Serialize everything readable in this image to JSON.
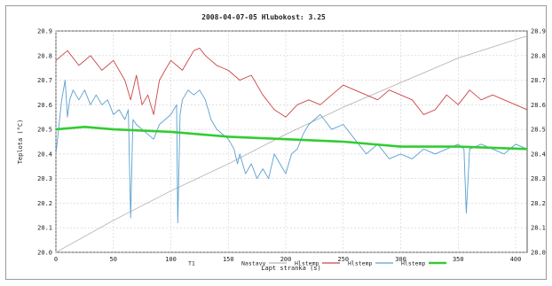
{
  "chart_data": {
    "type": "line",
    "title": "2008-04-07-05  Hlubokost: 3.25",
    "xlabel": "Lapt stranka (s)",
    "ylabel": "Teplota (°C)",
    "xlim": [
      0,
      410
    ],
    "ylim": [
      20.0,
      20.9
    ],
    "y2lim": [
      28.0,
      28.9
    ],
    "grid": true,
    "legend_position": "bottom",
    "x_ticks": [
      0,
      50,
      100,
      150,
      200,
      250,
      300,
      350,
      400
    ],
    "y_ticks": [
      "20.0",
      "20.1",
      "20.2",
      "20.3",
      "20.4",
      "20.5",
      "20.6",
      "20.7",
      "20.8",
      "20.9"
    ],
    "y2_ticks": [
      "28.00",
      "28.10",
      "28.20",
      "28.30",
      "28.40",
      "28.50",
      "28.60",
      "28.70",
      "28.80",
      "28.90"
    ],
    "series": [
      {
        "name": "T1",
        "color": "#9a9a9a",
        "axis": "none",
        "legend_line": false,
        "x": [],
        "y": []
      },
      {
        "name": "Nastavy",
        "color": "#b8b8b8",
        "axis": "y2",
        "x": [
          0,
          50,
          100,
          150,
          200,
          250,
          300,
          350,
          410
        ],
        "y": [
          28.0,
          28.13,
          28.25,
          28.36,
          28.48,
          28.59,
          28.69,
          28.79,
          28.88
        ]
      },
      {
        "name": "Hlstemp",
        "color": "#cc4444",
        "axis": "y",
        "x": [
          0,
          10,
          20,
          30,
          40,
          50,
          60,
          65,
          70,
          75,
          80,
          85,
          90,
          95,
          100,
          110,
          120,
          125,
          130,
          140,
          150,
          160,
          170,
          180,
          190,
          200,
          210,
          220,
          230,
          240,
          250,
          260,
          270,
          280,
          290,
          300,
          310,
          320,
          330,
          340,
          350,
          360,
          370,
          380,
          390,
          400,
          410
        ],
        "y": [
          20.78,
          20.82,
          20.76,
          20.8,
          20.74,
          20.78,
          20.7,
          20.62,
          20.72,
          20.6,
          20.64,
          20.56,
          20.7,
          20.74,
          20.78,
          20.74,
          20.82,
          20.83,
          20.8,
          20.76,
          20.74,
          20.7,
          20.72,
          20.64,
          20.58,
          20.55,
          20.6,
          20.62,
          20.6,
          20.64,
          20.68,
          20.66,
          20.64,
          20.62,
          20.66,
          20.64,
          20.62,
          20.56,
          20.58,
          20.64,
          20.6,
          20.66,
          20.62,
          20.64,
          20.62,
          20.6,
          20.58
        ]
      },
      {
        "name": "Hlstemp",
        "color": "#5aa0d0",
        "axis": "y",
        "x": [
          0,
          5,
          8,
          10,
          12,
          15,
          20,
          25,
          30,
          35,
          40,
          45,
          50,
          55,
          60,
          63,
          65,
          67,
          70,
          75,
          80,
          85,
          90,
          100,
          105,
          106,
          108,
          110,
          115,
          120,
          125,
          130,
          135,
          140,
          150,
          155,
          158,
          160,
          165,
          170,
          175,
          180,
          185,
          190,
          195,
          200,
          205,
          210,
          215,
          220,
          230,
          240,
          250,
          260,
          270,
          280,
          290,
          300,
          310,
          320,
          330,
          340,
          350,
          355,
          357,
          360,
          370,
          380,
          390,
          400,
          410
        ],
        "y": [
          20.4,
          20.62,
          20.7,
          20.55,
          20.62,
          20.66,
          20.62,
          20.66,
          20.6,
          20.64,
          20.6,
          20.62,
          20.56,
          20.58,
          20.54,
          20.58,
          20.14,
          20.54,
          20.52,
          20.5,
          20.48,
          20.46,
          20.52,
          20.56,
          20.6,
          20.12,
          20.56,
          20.62,
          20.66,
          20.64,
          20.66,
          20.62,
          20.54,
          20.5,
          20.46,
          20.42,
          20.36,
          20.4,
          20.32,
          20.36,
          20.3,
          20.34,
          20.3,
          20.4,
          20.36,
          20.32,
          20.4,
          20.42,
          20.48,
          20.52,
          20.56,
          20.5,
          20.52,
          20.46,
          20.4,
          20.44,
          20.38,
          20.4,
          20.38,
          20.42,
          20.4,
          20.42,
          20.44,
          20.42,
          20.16,
          20.42,
          20.44,
          20.42,
          20.4,
          20.44,
          20.42
        ]
      },
      {
        "name": "Hlstemp",
        "color": "#33cc33",
        "axis": "y",
        "x": [
          0,
          25,
          50,
          100,
          150,
          200,
          250,
          300,
          350,
          410
        ],
        "y": [
          20.5,
          20.51,
          20.5,
          20.49,
          20.47,
          20.46,
          20.45,
          20.43,
          20.43,
          20.42
        ]
      }
    ]
  }
}
